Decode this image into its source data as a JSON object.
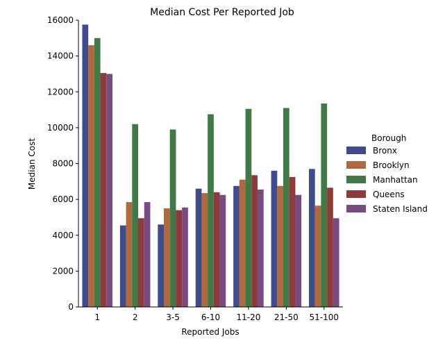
{
  "chart_data": {
    "type": "bar",
    "title": "Median Cost Per Reported Job",
    "xlabel": "Reported Jobs",
    "ylabel": "Median Cost",
    "ylim": [
      0,
      16000
    ],
    "yticks": [
      0,
      2000,
      4000,
      6000,
      8000,
      10000,
      12000,
      14000,
      16000
    ],
    "categories": [
      "1",
      "2",
      "3-5",
      "6-10",
      "11-20",
      "21-50",
      "51-100"
    ],
    "legend": {
      "title": "Borough",
      "placement": "right"
    },
    "grid": false,
    "series": [
      {
        "name": "Bronx",
        "color": "#3e4b8f",
        "values": [
          15750,
          4550,
          4600,
          6600,
          6750,
          7600,
          7700
        ]
      },
      {
        "name": "Brooklyn",
        "color": "#b0683e",
        "values": [
          14600,
          5850,
          5500,
          6350,
          7100,
          6750,
          5650
        ]
      },
      {
        "name": "Manhattan",
        "color": "#3f7a46",
        "values": [
          15000,
          10200,
          9900,
          10750,
          11050,
          11100,
          11350
        ]
      },
      {
        "name": "Queens",
        "color": "#8f3b39",
        "values": [
          13050,
          4950,
          5400,
          6400,
          7350,
          7250,
          6650
        ]
      },
      {
        "name": "Staten Island",
        "color": "#7a4b82",
        "values": [
          13000,
          5850,
          5550,
          6250,
          6550,
          6250,
          4950
        ]
      }
    ]
  }
}
